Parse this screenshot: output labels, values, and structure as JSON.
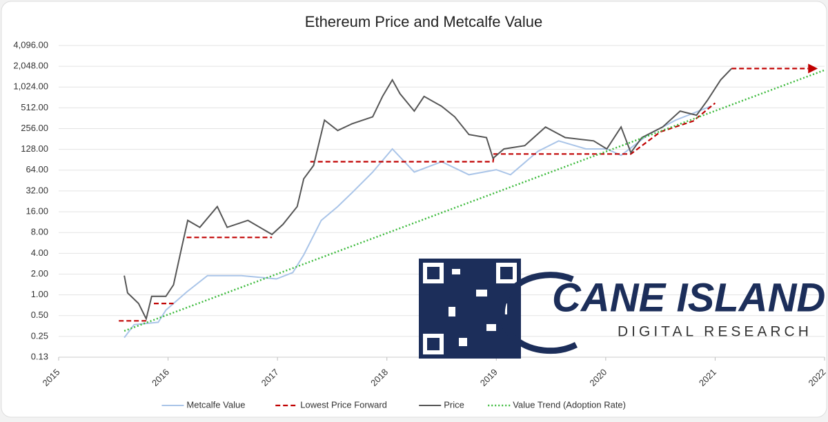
{
  "chart_data": {
    "type": "line",
    "title": "Ethereum Price and Metcalfe Value",
    "log_scale_y": true,
    "grid": true,
    "legend": "bottom",
    "xlim": [
      2015,
      2022
    ],
    "xticks": [
      2015,
      2016,
      2017,
      2018,
      2019,
      2020,
      2021,
      2022
    ],
    "ylim": [
      0.125,
      4096
    ],
    "yticks": [
      {
        "value": 0.125,
        "label": "0.13"
      },
      0.25,
      {
        "value": 0.5,
        "label": "0.50"
      },
      {
        "value": 1,
        "label": "1.00"
      },
      {
        "value": 2,
        "label": "2.00"
      },
      {
        "value": 4,
        "label": "4.00"
      },
      {
        "value": 8,
        "label": "8.00"
      },
      {
        "value": 16,
        "label": "16.00"
      },
      {
        "value": 32,
        "label": "32.00"
      },
      {
        "value": 64,
        "label": "64.00"
      },
      {
        "value": 128,
        "label": "128.00"
      },
      {
        "value": 256,
        "label": "256.00"
      },
      {
        "value": 512,
        "label": "512.00"
      },
      {
        "value": 1024,
        "label": "1,024.00"
      },
      {
        "value": 2048,
        "label": "2,048.00"
      },
      {
        "value": 4096,
        "label": "4,096.00"
      }
    ],
    "series": [
      {
        "name": "Metcalfe Value",
        "color": "#a9c4e8",
        "style": "solid",
        "x": [
          2015.6,
          2015.69,
          2015.91,
          2015.98,
          2016.17,
          2016.36,
          2016.67,
          2016.99,
          2017.14,
          2017.24,
          2017.4,
          2017.55,
          2017.68,
          2017.87,
          2018.05,
          2018.25,
          2018.5,
          2018.75,
          2019.0,
          2019.13,
          2019.38,
          2019.57,
          2019.82,
          2020.01,
          2020.14,
          2020.39,
          2020.64,
          2020.96
        ],
        "values": [
          0.24,
          0.37,
          0.4,
          0.6,
          1.1,
          1.9,
          1.9,
          1.7,
          2.1,
          3.8,
          12,
          19,
          30,
          60,
          130,
          60,
          85,
          55,
          65,
          55,
          120,
          170,
          130,
          130,
          105,
          210,
          340,
          540
        ]
      },
      {
        "name": "Lowest Price Forward",
        "color": "#c00000",
        "style": "dashed",
        "x": [
          2015.55,
          2015.8,
          2015.85,
          2015.87,
          2016.05,
          2016.1,
          2016.17,
          2016.95,
          2017.05,
          2017.3,
          2018.97,
          2018.98,
          2020.23,
          2020.5,
          2020.8,
          2021.0,
          2021.1,
          2021.15,
          2021.85
        ],
        "values": [
          0.42,
          0.42,
          null,
          0.75,
          0.75,
          null,
          6.8,
          6.8,
          null,
          85,
          85,
          110,
          110,
          230,
          330,
          600,
          null,
          1900,
          1900
        ]
      },
      {
        "name": "Price",
        "color": "#555555",
        "style": "solid",
        "x": [
          2015.6,
          2015.63,
          2015.73,
          2015.8,
          2015.85,
          2015.98,
          2016.05,
          2016.12,
          2016.18,
          2016.29,
          2016.45,
          2016.54,
          2016.73,
          2016.95,
          2017.05,
          2017.18,
          2017.24,
          2017.33,
          2017.43,
          2017.55,
          2017.68,
          2017.87,
          2017.96,
          2018.05,
          2018.12,
          2018.25,
          2018.34,
          2018.5,
          2018.62,
          2018.75,
          2018.91,
          2018.97,
          2019.07,
          2019.26,
          2019.45,
          2019.63,
          2019.89,
          2020.01,
          2020.14,
          2020.23,
          2020.33,
          2020.52,
          2020.68,
          2020.83,
          2020.93,
          2021.05,
          2021.15
        ],
        "values": [
          1.9,
          1.07,
          0.75,
          0.45,
          0.95,
          0.95,
          1.4,
          4.5,
          12,
          9.5,
          19,
          9.5,
          12,
          7.5,
          10.5,
          19,
          48,
          75,
          340,
          240,
          300,
          380,
          750,
          1300,
          820,
          460,
          750,
          540,
          380,
          210,
          190,
          95,
          130,
          145,
          270,
          190,
          170,
          130,
          270,
          115,
          190,
          270,
          460,
          400,
          660,
          1300,
          1900
        ]
      },
      {
        "name": "Value Trend (Adoption Rate)",
        "color": "#3cba3c",
        "style": "dotted",
        "x": [
          2015.6,
          2022
        ],
        "values": [
          0.3,
          1800
        ]
      }
    ],
    "logo_text": "CANE ISLAND",
    "logo_subtext": "DIGITAL RESEARCH"
  }
}
